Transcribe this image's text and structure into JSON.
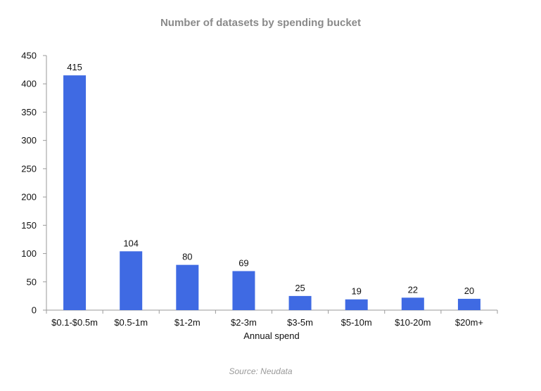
{
  "chart_data": {
    "type": "bar",
    "title": "Number of datasets by spending bucket",
    "xlabel": "Annual spend",
    "ylabel": "",
    "categories": [
      "$0.1-$0.5m",
      "$0.5-1m",
      "$1-2m",
      "$2-3m",
      "$3-5m",
      "$5-10m",
      "$10-20m",
      "$20m+"
    ],
    "values": [
      415,
      104,
      80,
      69,
      25,
      19,
      22,
      20
    ],
    "ylim": [
      0,
      450
    ],
    "yticks": [
      0,
      50,
      100,
      150,
      200,
      250,
      300,
      350,
      400,
      450
    ],
    "bar_color": "#3f6ae3",
    "grid": false,
    "legend": "none",
    "data_labels": [
      "415",
      "104",
      "80",
      "69",
      "25",
      "19",
      "22",
      "20"
    ]
  },
  "source": "Source: Neudata"
}
